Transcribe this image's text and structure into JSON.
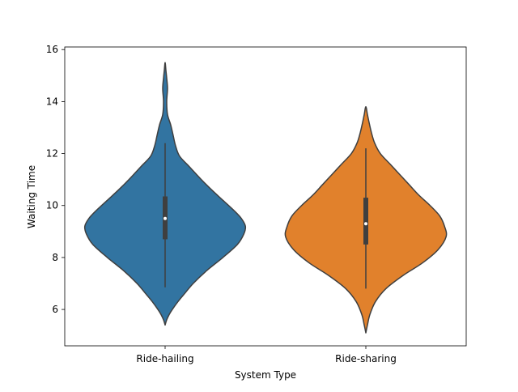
{
  "chart_data": {
    "type": "violin",
    "title": "",
    "xlabel": "System Type",
    "ylabel": "Waiting Time",
    "categories": [
      "Ride-hailing",
      "Ride-sharing"
    ],
    "ylim": [
      4.6,
      16.1
    ],
    "yticks": [
      6,
      8,
      10,
      12,
      14,
      16
    ],
    "grid": false,
    "legend": "none",
    "colors": [
      "#3274a1",
      "#e1812c"
    ],
    "series": [
      {
        "category": "Ride-hailing",
        "color": "#3274a1",
        "stats": {
          "whisker_low": 6.85,
          "q1": 8.7,
          "median": 9.5,
          "q3": 10.35,
          "whisker_high": 12.4,
          "min_extent": 5.4,
          "max_extent": 15.5
        },
        "density": [
          [
            5.4,
            0.0
          ],
          [
            5.6,
            0.02
          ],
          [
            5.8,
            0.05
          ],
          [
            6.0,
            0.09
          ],
          [
            6.3,
            0.16
          ],
          [
            6.6,
            0.24
          ],
          [
            7.0,
            0.35
          ],
          [
            7.5,
            0.52
          ],
          [
            8.0,
            0.72
          ],
          [
            8.5,
            0.9
          ],
          [
            8.9,
            0.98
          ],
          [
            9.2,
            1.0
          ],
          [
            9.5,
            0.95
          ],
          [
            9.8,
            0.86
          ],
          [
            10.2,
            0.72
          ],
          [
            10.6,
            0.58
          ],
          [
            11.0,
            0.45
          ],
          [
            11.5,
            0.3
          ],
          [
            11.9,
            0.18
          ],
          [
            12.3,
            0.13
          ],
          [
            12.7,
            0.1
          ],
          [
            13.1,
            0.07
          ],
          [
            13.5,
            0.03
          ],
          [
            14.0,
            0.02
          ],
          [
            14.5,
            0.03
          ],
          [
            14.9,
            0.02
          ],
          [
            15.2,
            0.01
          ],
          [
            15.5,
            0.0
          ]
        ]
      },
      {
        "category": "Ride-sharing",
        "color": "#e1812c",
        "stats": {
          "whisker_low": 6.8,
          "q1": 8.5,
          "median": 9.3,
          "q3": 10.3,
          "whisker_high": 12.2,
          "min_extent": 5.1,
          "max_extent": 13.8
        },
        "density": [
          [
            5.1,
            0.0
          ],
          [
            5.4,
            0.02
          ],
          [
            5.8,
            0.05
          ],
          [
            6.3,
            0.12
          ],
          [
            6.8,
            0.25
          ],
          [
            7.3,
            0.46
          ],
          [
            7.8,
            0.71
          ],
          [
            8.3,
            0.9
          ],
          [
            8.8,
            1.0
          ],
          [
            9.2,
            0.98
          ],
          [
            9.6,
            0.92
          ],
          [
            10.0,
            0.8
          ],
          [
            10.4,
            0.66
          ],
          [
            10.8,
            0.54
          ],
          [
            11.2,
            0.42
          ],
          [
            11.6,
            0.3
          ],
          [
            12.0,
            0.18
          ],
          [
            12.4,
            0.11
          ],
          [
            12.8,
            0.07
          ],
          [
            13.2,
            0.04
          ],
          [
            13.5,
            0.02
          ],
          [
            13.8,
            0.0
          ]
        ]
      }
    ]
  }
}
